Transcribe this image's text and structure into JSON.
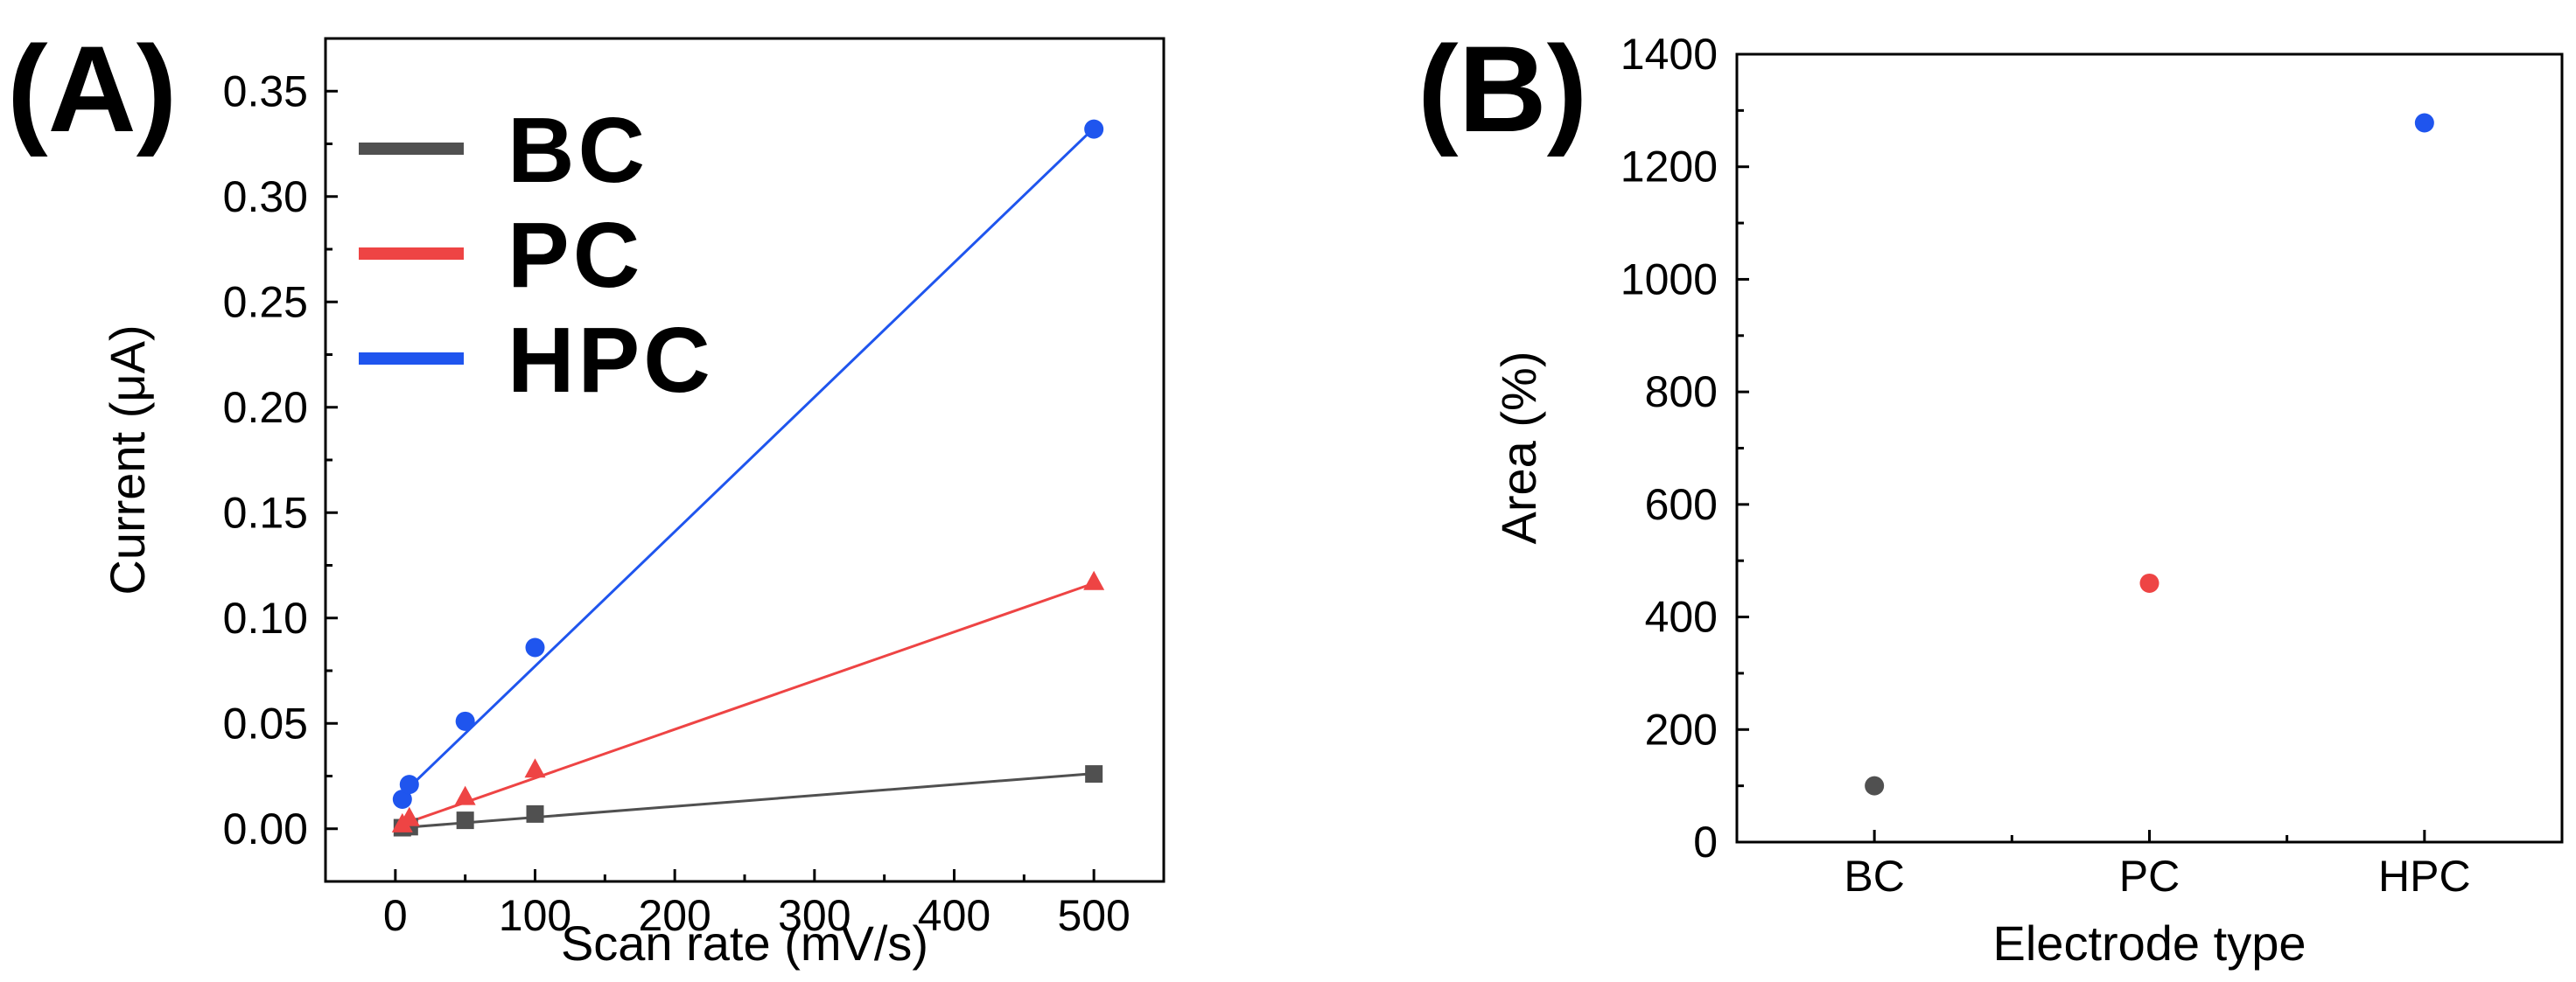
{
  "chart_data": [
    {
      "panel_label": "(A)",
      "type": "scatter",
      "xlabel": "Scan rate (mV/s)",
      "ylabel": "Current (μA)",
      "xlim": [
        -50,
        550
      ],
      "ylim": [
        -0.025,
        0.375
      ],
      "xticks": [
        0,
        100,
        200,
        300,
        400,
        500
      ],
      "xtick_labels": [
        "0",
        "100",
        "200",
        "300",
        "400",
        "500"
      ],
      "yticks": [
        0,
        0.05,
        0.1,
        0.15,
        0.2,
        0.25,
        0.3,
        0.35
      ],
      "ytick_labels": [
        "0.00",
        "0.05",
        "0.10",
        "0.15",
        "0.20",
        "0.25",
        "0.30",
        "0.35"
      ],
      "grid": false,
      "legend_position": "top-left",
      "series": [
        {
          "name": "BC",
          "color": "#505050",
          "marker": "square",
          "x": [
            5,
            10,
            50,
            100,
            500
          ],
          "y": [
            0.0005,
            0.001,
            0.004,
            0.007,
            0.026
          ],
          "fit": [
            0.0005,
            0.0262
          ]
        },
        {
          "name": "PC",
          "color": "#ee4444",
          "marker": "triangle",
          "x": [
            5,
            10,
            50,
            100,
            500
          ],
          "y": [
            0.002,
            0.005,
            0.015,
            0.028,
            0.117
          ],
          "fit": [
            0.0021,
            0.1165
          ]
        },
        {
          "name": "HPC",
          "color": "#1f55ee",
          "marker": "circle",
          "x": [
            5,
            10,
            50,
            100,
            500
          ],
          "y": [
            0.014,
            0.021,
            0.051,
            0.086,
            0.332
          ],
          "fit": [
            0.0165,
            0.3325
          ]
        }
      ]
    },
    {
      "panel_label": "(B)",
      "type": "scatter",
      "xlabel": "Electrode type",
      "ylabel": "Area (%)",
      "categories": [
        "BC",
        "PC",
        "HPC"
      ],
      "ylim": [
        0,
        1400
      ],
      "yticks": [
        0,
        200,
        400,
        600,
        800,
        1000,
        1200,
        1400
      ],
      "ytick_labels": [
        "0",
        "200",
        "400",
        "600",
        "800",
        "1000",
        "1200",
        "1400"
      ],
      "grid": false,
      "points": [
        {
          "category": "BC",
          "value": 100,
          "color": "#505050"
        },
        {
          "category": "PC",
          "value": 460,
          "color": "#ee4444"
        },
        {
          "category": "HPC",
          "value": 1278,
          "color": "#1f55ee"
        }
      ]
    }
  ]
}
